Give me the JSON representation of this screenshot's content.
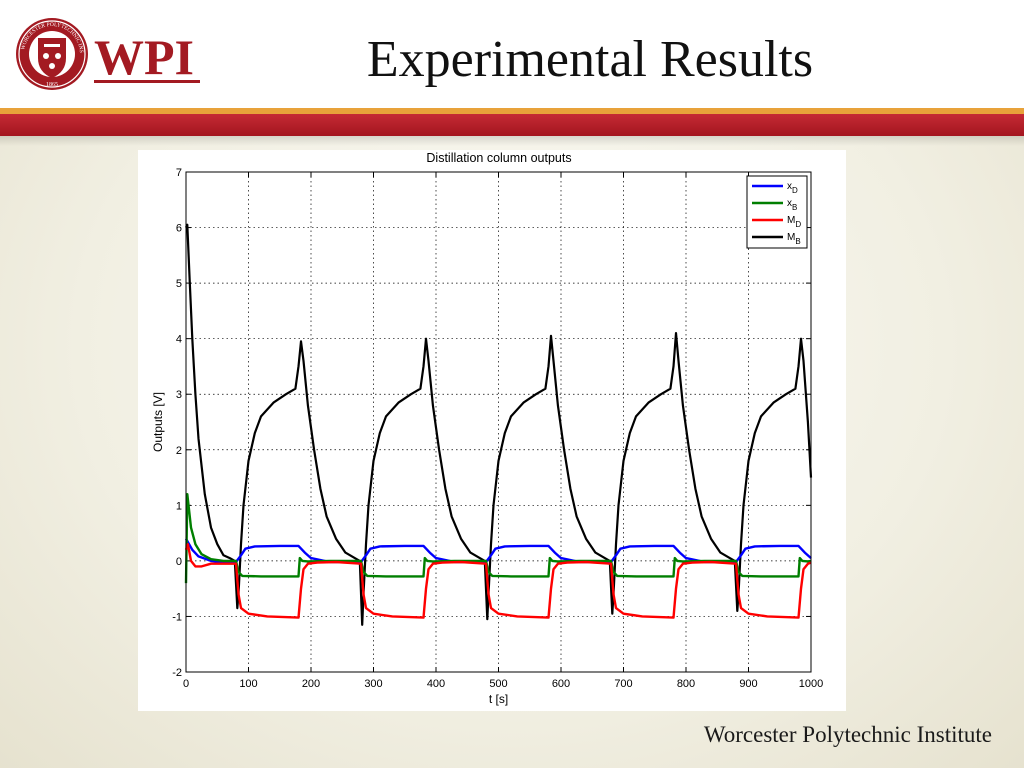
{
  "slide": {
    "title": "Experimental Results",
    "footer": "Worcester Polytechnic Institute"
  },
  "logo": {
    "text": "WPI",
    "seal_text": "WORCESTER POLYTECHNIC INSTITUTE",
    "seal_year": "1865",
    "colors": {
      "red": "#a31a22",
      "gold": "#e9a13b"
    }
  },
  "colors": {
    "band_red": "#b01e28",
    "band_orange": "#e8a23a",
    "series_xD": "#0000ff",
    "series_xB": "#007f00",
    "series_MD": "#ff0000",
    "series_MB": "#000000"
  },
  "chart_data": {
    "type": "line",
    "title": "Distillation column outputs",
    "xlabel": "t [s]",
    "ylabel": "Outputs [V]",
    "xlim": [
      0,
      1000
    ],
    "ylim": [
      -2,
      7
    ],
    "xticks": [
      0,
      100,
      200,
      300,
      400,
      500,
      600,
      700,
      800,
      900,
      1000
    ],
    "yticks": [
      -2,
      -1,
      0,
      1,
      2,
      3,
      4,
      5,
      6,
      7
    ],
    "grid": true,
    "legend_position": "top-right",
    "period_s": 200,
    "series": [
      {
        "name": "x",
        "subscript": "D",
        "color": "#0000ff",
        "x": [
          0,
          5,
          10,
          20,
          40,
          60,
          80,
          88,
          95,
          110,
          150,
          180,
          190,
          200,
          230,
          260,
          280,
          288,
          295,
          310,
          350,
          380,
          390,
          400,
          430,
          460,
          480,
          488,
          495,
          510,
          550,
          580,
          590,
          600,
          630,
          660,
          680,
          688,
          695,
          710,
          750,
          780,
          790,
          800,
          830,
          860,
          880,
          888,
          895,
          910,
          950,
          980,
          990,
          1000
        ],
        "y": [
          0.4,
          0.3,
          0.2,
          0.08,
          0.0,
          -0.02,
          -0.02,
          0.1,
          0.22,
          0.26,
          0.27,
          0.27,
          0.15,
          0.05,
          -0.02,
          -0.02,
          -0.02,
          0.1,
          0.22,
          0.26,
          0.27,
          0.27,
          0.15,
          0.05,
          -0.02,
          -0.02,
          -0.02,
          0.1,
          0.22,
          0.26,
          0.27,
          0.27,
          0.15,
          0.05,
          -0.02,
          -0.02,
          -0.02,
          0.1,
          0.22,
          0.26,
          0.27,
          0.27,
          0.15,
          0.05,
          -0.02,
          -0.02,
          -0.02,
          0.1,
          0.22,
          0.26,
          0.27,
          0.27,
          0.15,
          0.05
        ]
      },
      {
        "name": "x",
        "subscript": "B",
        "color": "#007f00",
        "x": [
          0,
          2,
          8,
          15,
          25,
          40,
          60,
          80,
          84,
          90,
          120,
          180,
          182,
          186,
          195,
          230,
          280,
          284,
          290,
          320,
          380,
          382,
          386,
          395,
          430,
          480,
          484,
          490,
          520,
          580,
          582,
          586,
          595,
          630,
          680,
          684,
          690,
          720,
          780,
          782,
          786,
          795,
          830,
          880,
          884,
          890,
          920,
          980,
          982,
          986,
          995,
          1000
        ],
        "y": [
          -0.4,
          1.2,
          0.6,
          0.3,
          0.12,
          0.03,
          0.0,
          0.0,
          -0.2,
          -0.27,
          -0.28,
          -0.28,
          0.05,
          0.0,
          -0.01,
          0.0,
          0.0,
          -0.2,
          -0.27,
          -0.28,
          -0.28,
          0.05,
          0.0,
          -0.01,
          0.0,
          0.0,
          -0.2,
          -0.27,
          -0.28,
          -0.28,
          0.05,
          0.0,
          -0.01,
          0.0,
          0.0,
          -0.2,
          -0.27,
          -0.28,
          -0.28,
          0.05,
          0.0,
          -0.01,
          0.0,
          0.0,
          -0.2,
          -0.27,
          -0.28,
          -0.28,
          0.05,
          0.0,
          -0.01,
          0.0
        ]
      },
      {
        "name": "M",
        "subscript": "D",
        "color": "#ff0000",
        "x": [
          0,
          3,
          8,
          15,
          25,
          40,
          60,
          80,
          84,
          88,
          100,
          130,
          180,
          184,
          188,
          195,
          210,
          240,
          280,
          284,
          288,
          300,
          330,
          380,
          384,
          388,
          395,
          410,
          440,
          480,
          484,
          488,
          500,
          530,
          580,
          584,
          588,
          595,
          610,
          640,
          680,
          684,
          688,
          700,
          730,
          780,
          784,
          788,
          795,
          810,
          840,
          880,
          884,
          888,
          900,
          930,
          980,
          984,
          988,
          995,
          1000
        ],
        "y": [
          0.2,
          0.3,
          0.0,
          -0.1,
          -0.1,
          -0.05,
          -0.05,
          -0.05,
          -0.6,
          -0.85,
          -0.95,
          -1.0,
          -1.02,
          -0.5,
          -0.15,
          -0.05,
          -0.03,
          -0.02,
          -0.05,
          -0.6,
          -0.85,
          -0.95,
          -1.0,
          -1.02,
          -0.5,
          -0.15,
          -0.05,
          -0.03,
          -0.02,
          -0.05,
          -0.6,
          -0.85,
          -0.95,
          -1.0,
          -1.02,
          -0.5,
          -0.15,
          -0.05,
          -0.03,
          -0.02,
          -0.05,
          -0.6,
          -0.85,
          -0.95,
          -1.0,
          -1.02,
          -0.5,
          -0.15,
          -0.05,
          -0.03,
          -0.02,
          -0.05,
          -0.6,
          -0.85,
          -0.95,
          -1.0,
          -1.02,
          -0.5,
          -0.15,
          -0.05,
          -0.03
        ]
      },
      {
        "name": "M",
        "subscript": "B",
        "color": "#000000",
        "x": [
          0,
          2,
          6,
          10,
          15,
          20,
          30,
          40,
          50,
          60,
          70,
          78,
          82,
          84,
          88,
          92,
          100,
          110,
          120,
          140,
          160,
          175,
          180,
          184,
          188,
          195,
          205,
          215,
          225,
          240,
          255,
          270,
          278,
          282,
          284,
          288,
          292,
          300,
          310,
          320,
          340,
          360,
          375,
          380,
          384,
          388,
          395,
          405,
          415,
          425,
          440,
          455,
          470,
          478,
          482,
          484,
          488,
          492,
          500,
          510,
          520,
          540,
          560,
          575,
          580,
          584,
          588,
          595,
          605,
          615,
          625,
          640,
          655,
          670,
          678,
          682,
          684,
          688,
          692,
          700,
          710,
          720,
          740,
          760,
          775,
          780,
          784,
          788,
          795,
          805,
          815,
          825,
          840,
          855,
          870,
          878,
          882,
          884,
          888,
          892,
          900,
          910,
          920,
          940,
          960,
          975,
          980,
          984,
          988,
          995,
          1000
        ],
        "y": [
          6.0,
          6.05,
          5.0,
          4.0,
          3.0,
          2.2,
          1.2,
          0.6,
          0.3,
          0.1,
          0.05,
          0.0,
          -0.85,
          -0.6,
          0.3,
          1.0,
          1.8,
          2.3,
          2.6,
          2.85,
          3.0,
          3.1,
          3.5,
          3.95,
          3.6,
          2.8,
          2.0,
          1.3,
          0.8,
          0.4,
          0.15,
          0.05,
          0.0,
          -1.15,
          -0.6,
          0.3,
          1.0,
          1.8,
          2.3,
          2.6,
          2.85,
          3.0,
          3.1,
          3.5,
          4.0,
          3.6,
          2.8,
          2.0,
          1.3,
          0.8,
          0.4,
          0.15,
          0.05,
          0.0,
          -1.05,
          -0.6,
          0.3,
          1.0,
          1.8,
          2.3,
          2.6,
          2.85,
          3.0,
          3.1,
          3.5,
          4.05,
          3.6,
          2.8,
          2.0,
          1.3,
          0.8,
          0.4,
          0.15,
          0.05,
          0.0,
          -0.95,
          -0.6,
          0.3,
          1.0,
          1.8,
          2.3,
          2.6,
          2.85,
          3.0,
          3.1,
          3.5,
          4.1,
          3.6,
          2.8,
          2.0,
          1.3,
          0.8,
          0.4,
          0.15,
          0.05,
          0.0,
          -0.9,
          -0.6,
          0.3,
          1.0,
          1.8,
          2.3,
          2.6,
          2.85,
          3.0,
          3.1,
          3.5,
          4.0,
          3.6,
          2.5,
          1.5
        ]
      }
    ]
  }
}
